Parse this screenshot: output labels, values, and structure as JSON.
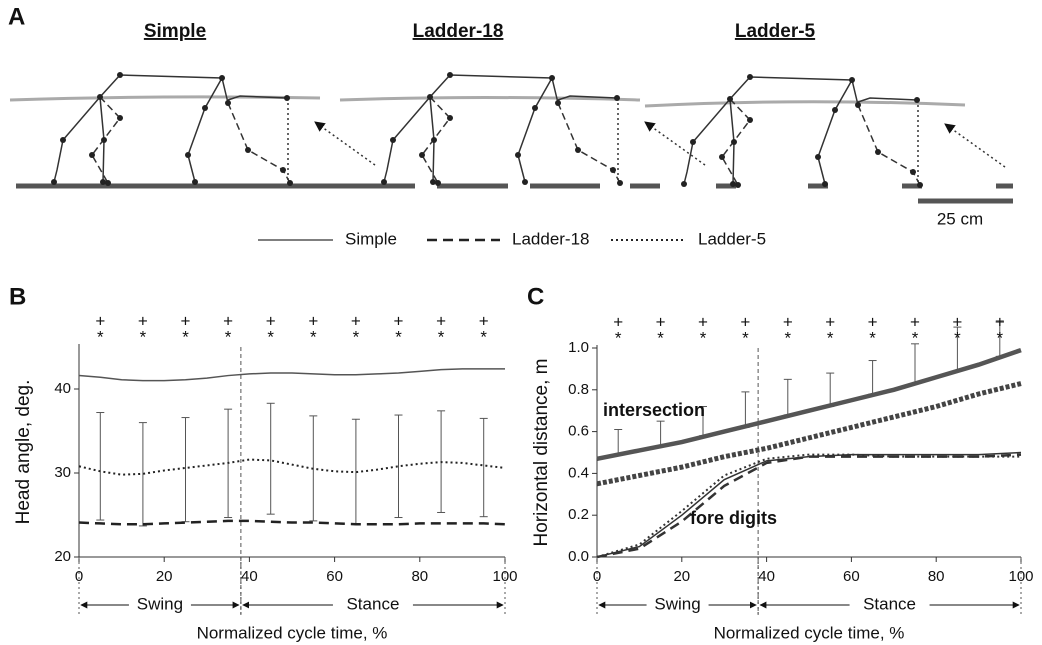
{
  "panel_a": {
    "label": "A",
    "titles": [
      "Simple",
      "Ladder-18",
      "Ladder-5"
    ],
    "scale_bar": "25 cm"
  },
  "chart_data": [
    {
      "type": "line",
      "panel_label": "B",
      "ylabel": "Head angle, deg.",
      "xlabel": "Normalized cycle time, %",
      "xlim": [
        0,
        100
      ],
      "xticks": [
        0,
        20,
        40,
        60,
        80,
        100
      ],
      "ylim": [
        20,
        45
      ],
      "yticks": [
        20,
        30,
        40
      ],
      "x": [
        0,
        5,
        10,
        15,
        20,
        25,
        30,
        35,
        40,
        45,
        50,
        55,
        60,
        65,
        70,
        75,
        80,
        85,
        90,
        95,
        100
      ],
      "series": [
        {
          "name": "Simple",
          "color": "#555555",
          "style": "solid",
          "values": [
            41.6,
            41.4,
            41.1,
            41.0,
            41.0,
            41.1,
            41.3,
            41.6,
            41.8,
            41.9,
            41.9,
            41.8,
            41.7,
            41.7,
            41.8,
            41.9,
            42.1,
            42.3,
            42.4,
            42.4,
            42.4
          ]
        },
        {
          "name": "Ladder-18",
          "color": "#222222",
          "style": "dashed",
          "values": [
            24.1,
            24.0,
            23.9,
            23.9,
            24.0,
            24.1,
            24.2,
            24.3,
            24.3,
            24.2,
            24.1,
            24.1,
            24.0,
            23.9,
            23.9,
            23.9,
            24.0,
            24.0,
            24.0,
            24.0,
            23.9
          ]
        },
        {
          "name": "Ladder-5",
          "color": "#222222",
          "style": "dotted",
          "values": [
            30.8,
            30.2,
            29.8,
            29.9,
            30.3,
            30.6,
            30.9,
            31.2,
            31.6,
            31.5,
            31.0,
            30.5,
            30.2,
            30.1,
            30.4,
            30.8,
            31.1,
            31.3,
            31.2,
            30.9,
            30.6
          ]
        }
      ],
      "error_bars": {
        "x": [
          5,
          15,
          25,
          35,
          45,
          55,
          65,
          75,
          85,
          95
        ],
        "low": [
          24.4,
          23.7,
          24.2,
          24.7,
          25.1,
          24.3,
          23.9,
          24.7,
          25.3,
          24.8
        ],
        "high": [
          37.2,
          36.0,
          36.6,
          37.6,
          38.3,
          36.8,
          36.4,
          36.9,
          37.4,
          36.5
        ]
      },
      "significance": {
        "x": [
          5,
          15,
          25,
          35,
          45,
          55,
          65,
          75,
          85,
          95
        ],
        "upper": [
          "+",
          "+",
          "+",
          "+",
          "+",
          "+",
          "+",
          "+",
          "+",
          "+"
        ],
        "lower": [
          "*",
          "*",
          "*",
          "*",
          "*",
          "*",
          "*",
          "*",
          "*",
          "*"
        ]
      },
      "divider": 38,
      "phases": [
        {
          "label": "Swing",
          "from": 0,
          "to": 38
        },
        {
          "label": "Stance",
          "from": 38,
          "to": 100
        }
      ]
    },
    {
      "type": "line",
      "panel_label": "C",
      "ylabel": "Horizontal distance, m",
      "xlabel": "Normalized cycle time, %",
      "xlim": [
        0,
        100
      ],
      "xticks": [
        0,
        20,
        40,
        60,
        80,
        100
      ],
      "ylim": [
        0,
        1.0
      ],
      "yticks": [
        {
          "value": 0,
          "label": "0.0"
        },
        0.2,
        0.4,
        0.6,
        0.8,
        {
          "value": 1.0,
          "label": "1.0"
        }
      ],
      "x": [
        0,
        10,
        20,
        30,
        40,
        50,
        60,
        70,
        80,
        90,
        100
      ],
      "series": [
        {
          "color": "#555555",
          "style": "thick",
          "values": [
            0.47,
            0.51,
            0.55,
            0.6,
            0.65,
            0.7,
            0.75,
            0.8,
            0.86,
            0.92,
            0.99
          ]
        },
        {
          "color": "#444444",
          "style": "squares",
          "values": [
            0.35,
            0.39,
            0.43,
            0.48,
            0.52,
            0.57,
            0.62,
            0.67,
            0.72,
            0.78,
            0.83
          ]
        },
        {
          "color": "#333333",
          "style": "solid",
          "values": [
            0,
            0.05,
            0.2,
            0.37,
            0.46,
            0.48,
            0.49,
            0.49,
            0.49,
            0.49,
            0.5
          ]
        },
        {
          "color": "#333333",
          "style": "dashed",
          "values": [
            0,
            0.04,
            0.17,
            0.34,
            0.45,
            0.48,
            0.48,
            0.48,
            0.48,
            0.48,
            0.49
          ]
        },
        {
          "color": "#333333",
          "style": "dotted",
          "values": [
            0,
            0.06,
            0.22,
            0.39,
            0.47,
            0.49,
            0.49,
            0.48,
            0.48,
            0.48,
            0.48
          ]
        }
      ],
      "error_bars": {
        "x": [
          5,
          15,
          25,
          35,
          45,
          55,
          65,
          75,
          85,
          95
        ],
        "low": [
          0.49,
          0.53,
          0.58,
          0.62,
          0.68,
          0.72,
          0.78,
          0.83,
          0.89,
          0.96
        ],
        "high": [
          0.61,
          0.65,
          0.72,
          0.79,
          0.85,
          0.88,
          0.94,
          1.02,
          1.1,
          1.13
        ]
      },
      "significance": {
        "x": [
          5,
          15,
          25,
          35,
          45,
          55,
          65,
          75,
          85,
          95
        ],
        "upper": [
          "+",
          "+",
          "+",
          "+",
          "+",
          "+",
          "+",
          "+",
          "+",
          "+"
        ],
        "lower": [
          "*",
          "*",
          "*",
          "*",
          "*",
          "*",
          "*",
          "*",
          "*",
          "*"
        ]
      },
      "annotations": [
        "intersection",
        "fore digits"
      ],
      "divider": 38,
      "phases": [
        {
          "label": "Swing",
          "from": 0,
          "to": 38
        },
        {
          "label": "Stance",
          "from": 38,
          "to": 100
        }
      ]
    }
  ]
}
